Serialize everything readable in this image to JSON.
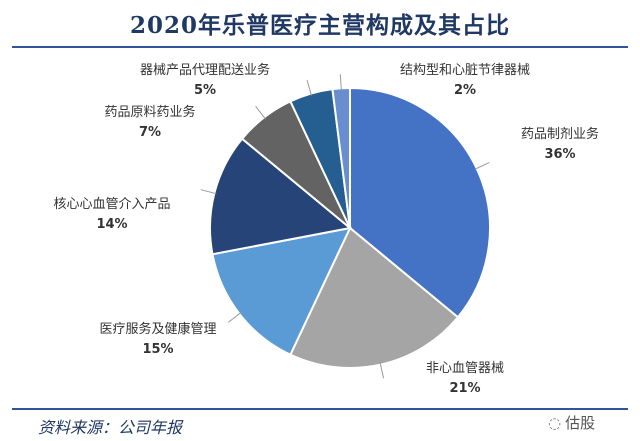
{
  "title": "2020年乐普医疗主营构成及其占比",
  "source": "资料来源：公司年报",
  "watermark": "估股",
  "chart_data": {
    "type": "pie",
    "title": "2020年乐普医疗主营构成及其占比",
    "slices": [
      {
        "label": "药品制剂业务",
        "pct_label": "36%",
        "value": 36,
        "color": "#4472c4"
      },
      {
        "label": "非心血管器械",
        "pct_label": "21%",
        "value": 21,
        "color": "#a5a5a5"
      },
      {
        "label": "医疗服务及健康管理",
        "pct_label": "15%",
        "value": 15,
        "color": "#5b9bd5"
      },
      {
        "label": "核心心血管介入产品",
        "pct_label": "14%",
        "value": 14,
        "color": "#264478"
      },
      {
        "label": "药品原料药业务",
        "pct_label": "7%",
        "value": 7,
        "color": "#636363"
      },
      {
        "label": "器械产品代理配送业务",
        "pct_label": "5%",
        "value": 5,
        "color": "#255e91"
      },
      {
        "label": "结构型和心脏节律器械",
        "pct_label": "2%",
        "value": 2,
        "color": "#698ed0"
      }
    ]
  }
}
